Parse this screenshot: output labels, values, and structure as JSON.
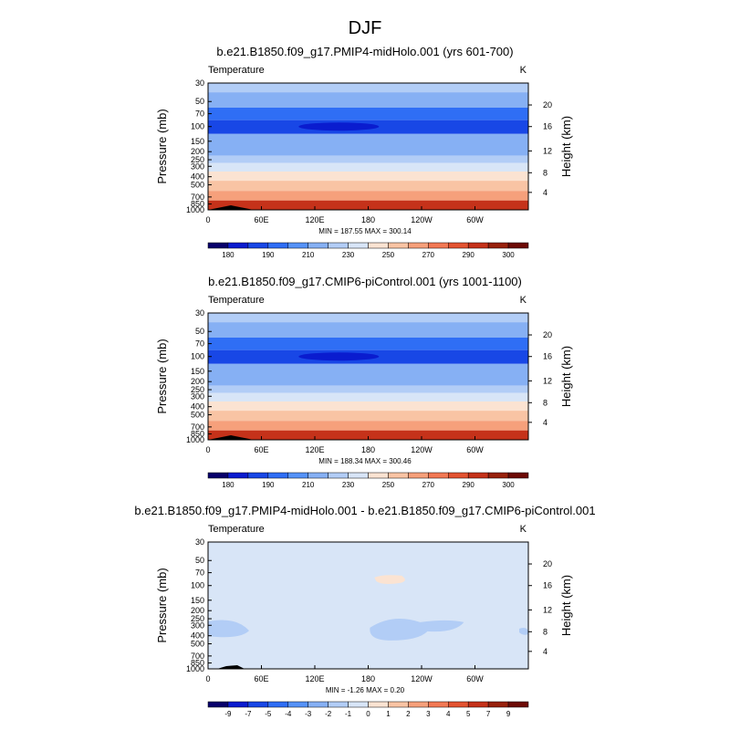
{
  "figure": {
    "title": "DJF"
  },
  "colors": {
    "abs_palette": [
      "#08006b",
      "#0a1ccf",
      "#1847e6",
      "#2f6ef5",
      "#5592f7",
      "#86b0f4",
      "#b2cdf6",
      "#d8e5f7",
      "#fbe3d2",
      "#f9c4a4",
      "#f6a07b",
      "#f27954",
      "#e35331",
      "#c5321a",
      "#98210c",
      "#6d0a05"
    ],
    "diff_palette": [
      "#08006b",
      "#0a1ccf",
      "#1847e6",
      "#2f6ef5",
      "#5592f7",
      "#86b0f4",
      "#b2cdf6",
      "#d8e5f7",
      "#fbe3d2",
      "#f9c4a4",
      "#f6a07b",
      "#f27954",
      "#e35331",
      "#c5321a",
      "#98210c",
      "#6d0a05"
    ]
  },
  "chart_data": [
    {
      "type": "heatmap",
      "title": "b.e21.B1850.f09_g17.PMIP4-midHolo.001 (yrs 601-700)",
      "left_label": "Temperature",
      "right_label": "K",
      "ylabel": "Pressure (mb)",
      "y2label": "Height (km)",
      "xticks": [
        "0",
        "60E",
        "120E",
        "180",
        "120W",
        "60W"
      ],
      "yticks": [
        "30",
        "50",
        "70",
        "100",
        "150",
        "200",
        "250",
        "300",
        "400",
        "500",
        "700",
        "850",
        "1000"
      ],
      "y2ticks": [
        "20",
        "16",
        "12",
        "8",
        "4"
      ],
      "stats": "MIN = 187.55   MAX = 300.14",
      "min": 187.55,
      "max": 300.14,
      "bands": [
        {
          "p": 30,
          "v": 228
        },
        {
          "p": 50,
          "v": 218
        },
        {
          "p": 70,
          "v": 205
        },
        {
          "p": 100,
          "v": 199
        },
        {
          "p": 150,
          "v": 212
        },
        {
          "p": 200,
          "v": 220
        },
        {
          "p": 250,
          "v": 226
        },
        {
          "p": 300,
          "v": 233
        },
        {
          "p": 400,
          "v": 245
        },
        {
          "p": 500,
          "v": 254
        },
        {
          "p": 700,
          "v": 268
        },
        {
          "p": 850,
          "v": 282
        },
        {
          "p": 1000,
          "v": 296
        }
      ],
      "colorbar_levels": [
        "180",
        "190",
        "210",
        "230",
        "250",
        "270",
        "290",
        "300"
      ]
    },
    {
      "type": "heatmap",
      "title": "b.e21.B1850.f09_g17.CMIP6-piControl.001 (yrs 1001-1100)",
      "left_label": "Temperature",
      "right_label": "K",
      "ylabel": "Pressure (mb)",
      "y2label": "Height (km)",
      "xticks": [
        "0",
        "60E",
        "120E",
        "180",
        "120W",
        "60W"
      ],
      "yticks": [
        "30",
        "50",
        "70",
        "100",
        "150",
        "200",
        "250",
        "300",
        "400",
        "500",
        "700",
        "850",
        "1000"
      ],
      "y2ticks": [
        "20",
        "16",
        "12",
        "8",
        "4"
      ],
      "stats": "MIN = 188.34   MAX = 300.46",
      "min": 188.34,
      "max": 300.46,
      "bands": [
        {
          "p": 30,
          "v": 228
        },
        {
          "p": 50,
          "v": 218
        },
        {
          "p": 70,
          "v": 205
        },
        {
          "p": 100,
          "v": 199
        },
        {
          "p": 150,
          "v": 212
        },
        {
          "p": 200,
          "v": 220
        },
        {
          "p": 250,
          "v": 226
        },
        {
          "p": 300,
          "v": 233
        },
        {
          "p": 400,
          "v": 245
        },
        {
          "p": 500,
          "v": 254
        },
        {
          "p": 700,
          "v": 268
        },
        {
          "p": 850,
          "v": 282
        },
        {
          "p": 1000,
          "v": 296
        }
      ],
      "colorbar_levels": [
        "180",
        "190",
        "210",
        "230",
        "250",
        "270",
        "290",
        "300"
      ]
    },
    {
      "type": "heatmap",
      "title": "b.e21.B1850.f09_g17.PMIP4-midHolo.001 - b.e21.B1850.f09_g17.CMIP6-piControl.001",
      "left_label": "Temperature",
      "right_label": "K",
      "ylabel": "Pressure (mb)",
      "y2label": "Height (km)",
      "xticks": [
        "0",
        "60E",
        "120E",
        "180",
        "120W",
        "60W"
      ],
      "yticks": [
        "30",
        "50",
        "70",
        "100",
        "150",
        "200",
        "250",
        "300",
        "400",
        "500",
        "700",
        "850",
        "1000"
      ],
      "y2ticks": [
        "20",
        "16",
        "12",
        "8",
        "4"
      ],
      "stats": "MIN =  -1.26   MAX =   0.20",
      "min": -1.26,
      "max": 0.2,
      "background_value": -0.5,
      "colorbar_levels": [
        "-9",
        "-7",
        "-5",
        "-4",
        "-3",
        "-2",
        "-1",
        "0",
        "1",
        "2",
        "3",
        "4",
        "5",
        "7",
        "9"
      ]
    }
  ]
}
